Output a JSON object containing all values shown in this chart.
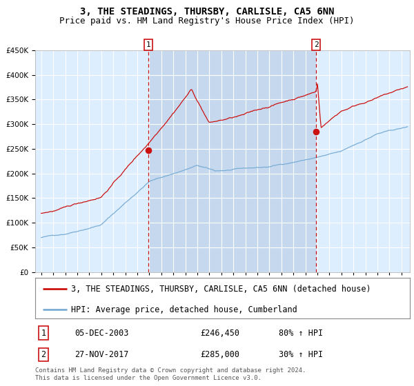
{
  "title": "3, THE STEADINGS, THURSBY, CARLISLE, CA5 6NN",
  "subtitle": "Price paid vs. HM Land Registry's House Price Index (HPI)",
  "ylim": [
    0,
    450000
  ],
  "yticks": [
    0,
    50000,
    100000,
    150000,
    200000,
    250000,
    300000,
    350000,
    400000,
    450000
  ],
  "xlim_start": 1994.5,
  "xlim_end": 2025.7,
  "background_color": "#ffffff",
  "plot_bg_color": "#ddeeff",
  "shade_color": "#c5d8ee",
  "grid_color": "#ffffff",
  "hpi_color": "#7aadd4",
  "price_color": "#cc1111",
  "sale1_date_x": 2003.92,
  "sale1_price": 246450,
  "sale2_date_x": 2017.9,
  "sale2_price": 285000,
  "legend_line1": "3, THE STEADINGS, THURSBY, CARLISLE, CA5 6NN (detached house)",
  "legend_line2": "HPI: Average price, detached house, Cumberland",
  "table_row1_label": "1",
  "table_row1_date": "05-DEC-2003",
  "table_row1_price": "£246,450",
  "table_row1_hpi": "80% ↑ HPI",
  "table_row2_label": "2",
  "table_row2_date": "27-NOV-2017",
  "table_row2_price": "£285,000",
  "table_row2_hpi": "30% ↑ HPI",
  "footer": "Contains HM Land Registry data © Crown copyright and database right 2024.\nThis data is licensed under the Open Government Licence v3.0.",
  "title_fontsize": 10,
  "subtitle_fontsize": 9,
  "tick_fontsize": 7.5,
  "legend_fontsize": 8.5,
  "table_fontsize": 8.5,
  "footer_fontsize": 6.5
}
